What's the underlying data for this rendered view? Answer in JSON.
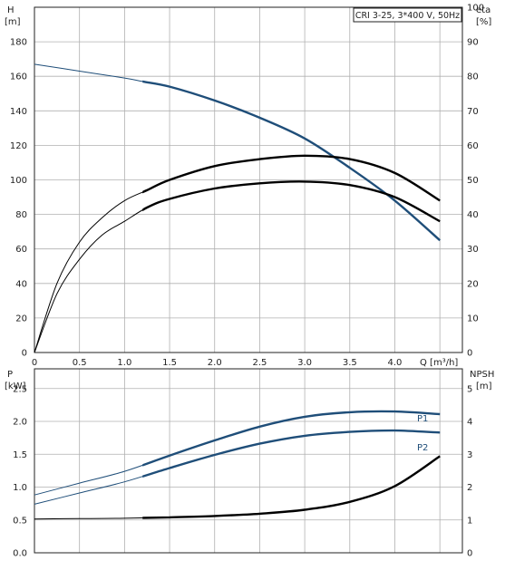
{
  "chart_data": [
    {
      "type": "line",
      "title": "CRI 3-25, 3*400 V, 50Hz",
      "left_axis": {
        "label": "H",
        "unit": "[m]",
        "range": [
          0,
          200
        ],
        "ticks": [
          "0",
          "20",
          "40",
          "60",
          "80",
          "100",
          "120",
          "140",
          "160",
          "180"
        ]
      },
      "right_axis": {
        "label": "eta",
        "unit": "[%]",
        "range": [
          0,
          100
        ],
        "ticks": [
          "0",
          "10",
          "20",
          "30",
          "40",
          "50",
          "60",
          "70",
          "80",
          "90",
          "100"
        ]
      },
      "x_axis": {
        "label": "Q [m³/h]",
        "range": [
          0,
          4.75
        ],
        "ticks": [
          "0",
          "0.5",
          "1.0",
          "1.5",
          "2.0",
          "2.5",
          "3.0",
          "3.5",
          "4.0"
        ]
      },
      "grid": true,
      "series": [
        {
          "axis": "left",
          "color": "#1f4e79",
          "values_x": [
            0,
            0.5,
            1.0,
            1.2,
            1.5,
            2.0,
            2.5,
            3.0,
            3.5,
            4.0,
            4.5
          ],
          "values_y": [
            167,
            163,
            159,
            157,
            154,
            146,
            136,
            124,
            107,
            88,
            65
          ]
        },
        {
          "axis": "right",
          "color": "#000000",
          "values_x": [
            0,
            0.25,
            0.5,
            0.75,
            1.0,
            1.25,
            1.5,
            2.0,
            2.5,
            3.0,
            3.5,
            4.0,
            4.5
          ],
          "values_y": [
            0,
            20,
            32,
            39,
            44,
            47,
            50,
            54,
            56,
            57,
            56,
            52,
            44
          ]
        },
        {
          "axis": "right",
          "color": "#000000",
          "values_x": [
            0,
            0.25,
            0.5,
            0.75,
            1.0,
            1.25,
            1.5,
            2.0,
            2.5,
            3.0,
            3.5,
            4.0,
            4.5
          ],
          "values_y": [
            0,
            17,
            27,
            34,
            38,
            42,
            44.5,
            47.5,
            49,
            49.5,
            48.5,
            45,
            38
          ]
        }
      ]
    },
    {
      "type": "line",
      "left_axis": {
        "label": "P",
        "unit": "[kW]",
        "range": [
          0,
          2.8
        ],
        "ticks": [
          "0.0",
          "0.5",
          "1.0",
          "1.5",
          "2.0",
          "2.5"
        ]
      },
      "right_axis": {
        "label": "NPSH",
        "unit": "[m]",
        "range": [
          0,
          5.6
        ],
        "ticks": [
          "0",
          "1",
          "2",
          "3",
          "4",
          "5"
        ]
      },
      "x_axis": {
        "range": [
          0,
          4.75
        ]
      },
      "grid": true,
      "series": [
        {
          "name": "P1",
          "axis": "left",
          "color": "#1f4e79",
          "values_x": [
            0,
            0.5,
            1.0,
            1.5,
            2.0,
            2.5,
            3.0,
            3.5,
            4.0,
            4.5
          ],
          "values_y": [
            0.88,
            1.06,
            1.24,
            1.48,
            1.71,
            1.92,
            2.07,
            2.14,
            2.15,
            2.11
          ]
        },
        {
          "name": "P2",
          "axis": "left",
          "color": "#1f4e79",
          "values_x": [
            0,
            0.5,
            1.0,
            1.5,
            2.0,
            2.5,
            3.0,
            3.5,
            4.0,
            4.5
          ],
          "values_y": [
            0.74,
            0.91,
            1.08,
            1.29,
            1.49,
            1.66,
            1.78,
            1.84,
            1.86,
            1.83
          ]
        },
        {
          "axis": "right",
          "color": "#000000",
          "values_x": [
            0,
            0.5,
            1.0,
            1.5,
            2.0,
            2.5,
            3.0,
            3.5,
            4.0,
            4.5
          ],
          "values_y": [
            1.03,
            1.04,
            1.05,
            1.08,
            1.12,
            1.19,
            1.31,
            1.55,
            2.03,
            2.94
          ]
        }
      ]
    }
  ]
}
